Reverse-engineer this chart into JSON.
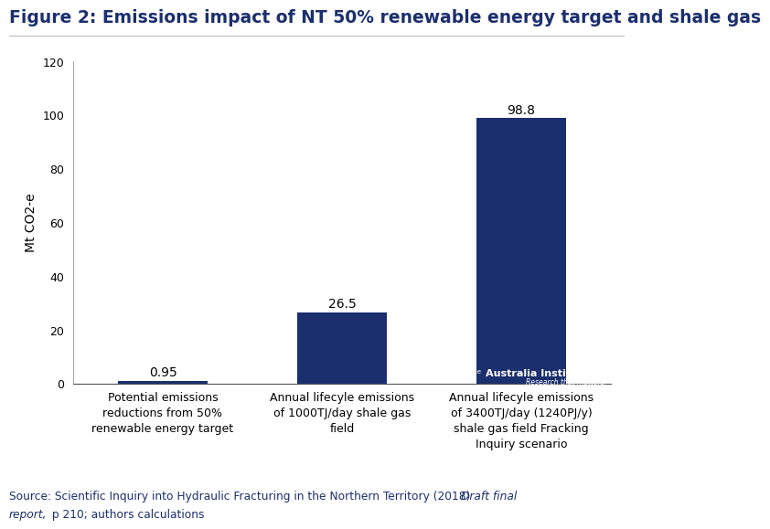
{
  "title": "Figure 2: Emissions impact of NT 50% renewable energy target and shale gas",
  "categories": [
    "Potential emissions\nreductions from 50%\nrenewable energy target",
    "Annual lifecyle emissions\nof 1000TJ/day shale gas\nfield",
    "Annual lifecyle emissions\nof 3400TJ/day (1240PJ/y)\nshale gas field Fracking\nInquiry scenario"
  ],
  "values": [
    0.95,
    26.5,
    98.8
  ],
  "bar_color": "#1b2f6e",
  "ylabel": "Mt CO2-e",
  "ylim": [
    0,
    120
  ],
  "yticks": [
    0,
    20,
    40,
    60,
    80,
    100,
    120
  ],
  "background_color": "#ffffff",
  "plot_bg_color": "#ffffff",
  "title_fontsize": 13.5,
  "title_color": "#1b2f6e",
  "label_fontsize": 9,
  "ylabel_fontsize": 10,
  "value_labels": [
    "0.95",
    "26.5",
    "98.8"
  ],
  "logo_bg_color": "#1b2f6e",
  "source_color": "#1b2f6e"
}
